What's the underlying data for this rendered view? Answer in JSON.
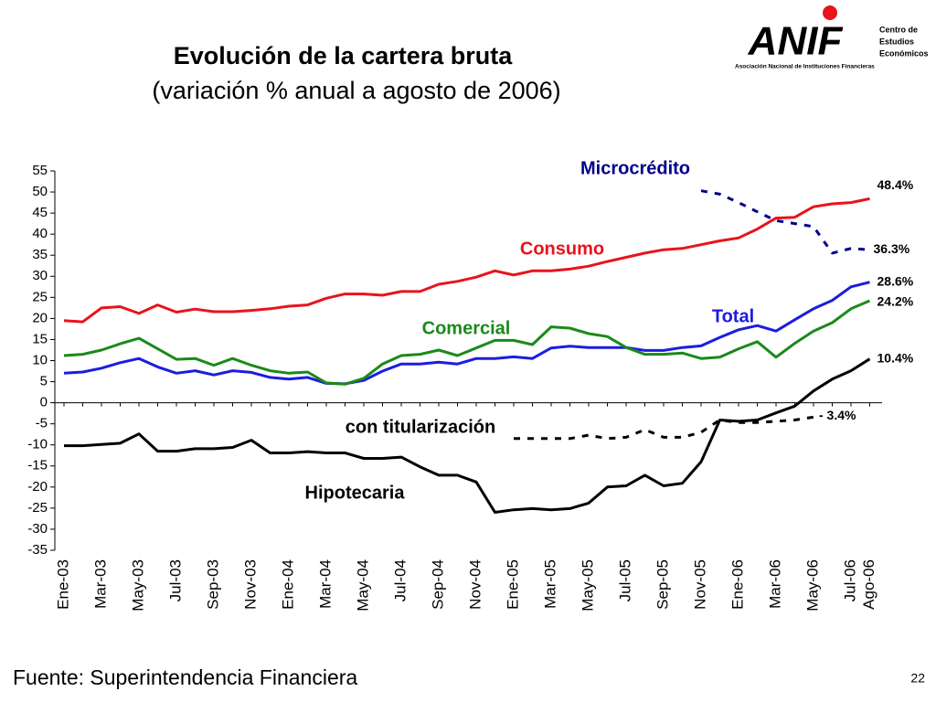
{
  "chart_data": {
    "type": "line",
    "title": "Evolución de la cartera bruta",
    "subtitle": "(variación % anual a agosto de 2006)",
    "source": "Fuente: Superintendencia Financiera",
    "page_number": "22",
    "logo": {
      "name": "ANIF",
      "center": [
        "Centro de",
        "Estudios",
        "Económicos"
      ],
      "association": "Asociación Nacional de Instituciones Financieras"
    },
    "categories": [
      "Ene-03",
      null,
      "Mar-03",
      null,
      "May-03",
      null,
      "Jul-03",
      null,
      "Sep-03",
      null,
      "Nov-03",
      null,
      "Ene-04",
      null,
      "Mar-04",
      null,
      "May-04",
      null,
      "Jul-04",
      null,
      "Sep-04",
      null,
      "Nov-04",
      null,
      "Ene-05",
      null,
      "Mar-05",
      null,
      "May-05",
      null,
      "Jul-05",
      null,
      "Sep-05",
      null,
      "Nov-05",
      null,
      "Ene-06",
      null,
      "Mar-06",
      null,
      "May-06",
      null,
      "Jul-06",
      "Ago-06"
    ],
    "ylim": [
      -35,
      55
    ],
    "yticks": [
      55,
      50,
      45,
      40,
      35,
      30,
      25,
      20,
      15,
      10,
      5,
      0,
      -5,
      -10,
      -15,
      -20,
      -25,
      -30,
      -35
    ],
    "series": [
      {
        "name": "Consumo",
        "color": "#e8141b",
        "dash": false,
        "values": [
          19.5,
          19.2,
          22.5,
          22.8,
          21.2,
          23.2,
          21.5,
          22.2,
          21.6,
          21.6,
          21.9,
          22.3,
          22.9,
          23.2,
          24.8,
          25.8,
          25.8,
          25.5,
          26.4,
          26.4,
          28.1,
          28.8,
          29.8,
          31.3,
          30.3,
          31.3,
          31.3,
          31.7,
          32.4,
          33.5,
          34.5,
          35.5,
          36.3,
          36.6,
          37.5,
          38.4,
          39.1,
          41.2,
          43.8,
          44.0,
          46.5,
          47.2,
          47.5,
          48.4
        ],
        "value_labels": [
          null,
          null,
          null,
          null,
          null,
          null,
          null,
          null,
          null,
          null,
          null,
          null,
          null,
          null,
          null,
          null,
          null,
          null,
          null,
          null,
          null,
          null,
          null,
          null,
          null,
          null,
          null,
          null,
          null,
          null,
          null,
          null,
          null,
          null,
          null,
          null,
          null,
          null,
          null,
          null,
          null,
          null,
          null,
          "48.4%"
        ]
      },
      {
        "name": "Microcrédito",
        "color": "#00008b",
        "dash": true,
        "values": [
          null,
          null,
          null,
          null,
          null,
          null,
          null,
          null,
          null,
          null,
          null,
          null,
          null,
          null,
          null,
          null,
          null,
          null,
          null,
          null,
          null,
          null,
          null,
          null,
          null,
          null,
          null,
          null,
          null,
          null,
          null,
          null,
          null,
          null,
          50.3,
          49.5,
          47.5,
          45.3,
          43.2,
          42.5,
          41.8,
          35.5,
          36.6,
          36.3
        ],
        "value_labels": [
          null,
          null,
          null,
          null,
          null,
          null,
          null,
          null,
          null,
          null,
          null,
          null,
          null,
          null,
          null,
          null,
          null,
          null,
          null,
          null,
          null,
          null,
          null,
          null,
          null,
          null,
          null,
          null,
          null,
          null,
          null,
          null,
          null,
          null,
          null,
          null,
          null,
          null,
          null,
          null,
          null,
          null,
          null,
          "36.3%"
        ]
      },
      {
        "name": "Total",
        "color": "#1c1ce0",
        "dash": false,
        "values": [
          7,
          7.3,
          8.2,
          9.5,
          10.5,
          8.5,
          7,
          7.6,
          6.6,
          7.6,
          7.2,
          6,
          5.6,
          6,
          4.6,
          4.5,
          5.3,
          7.5,
          9.2,
          9.2,
          9.6,
          9.2,
          10.5,
          10.5,
          10.9,
          10.5,
          13,
          13.4,
          13.1,
          13.1,
          13.1,
          12.4,
          12.4,
          13.1,
          13.5,
          15.5,
          17.3,
          18.3,
          17,
          19.7,
          22.3,
          24.3,
          27.5,
          28.6
        ],
        "value_labels": [
          null,
          null,
          null,
          null,
          null,
          null,
          null,
          null,
          null,
          null,
          null,
          null,
          null,
          null,
          null,
          null,
          null,
          null,
          null,
          null,
          null,
          null,
          null,
          null,
          null,
          null,
          null,
          null,
          null,
          null,
          null,
          null,
          null,
          null,
          null,
          null,
          null,
          null,
          null,
          null,
          null,
          null,
          null,
          "28.6%"
        ]
      },
      {
        "name": "Comercial",
        "color": "#1a8a1a",
        "dash": false,
        "values": [
          11.2,
          11.5,
          12.5,
          14,
          15.3,
          12.8,
          10.3,
          10.5,
          8.9,
          10.5,
          8.9,
          7.6,
          7,
          7.3,
          4.7,
          4.4,
          5.8,
          9.2,
          11.2,
          11.5,
          12.5,
          11.2,
          13,
          14.8,
          14.8,
          13.8,
          18,
          17.7,
          16.4,
          15.7,
          13.1,
          11.5,
          11.5,
          11.8,
          10.5,
          10.8,
          12.8,
          14.5,
          10.8,
          14.1,
          17,
          19,
          22.3,
          24.2
        ],
        "value_labels": [
          null,
          null,
          null,
          null,
          null,
          null,
          null,
          null,
          null,
          null,
          null,
          null,
          null,
          null,
          null,
          null,
          null,
          null,
          null,
          null,
          null,
          null,
          null,
          null,
          null,
          null,
          null,
          null,
          null,
          null,
          null,
          null,
          null,
          null,
          null,
          null,
          null,
          null,
          null,
          null,
          null,
          null,
          null,
          "24.2%"
        ]
      },
      {
        "name": "con titularización",
        "color": "#000000",
        "dash": true,
        "values": [
          null,
          null,
          null,
          null,
          null,
          null,
          null,
          null,
          null,
          null,
          null,
          null,
          null,
          null,
          null,
          null,
          null,
          null,
          null,
          null,
          null,
          null,
          null,
          null,
          -8.5,
          -8.5,
          -8.5,
          -8.5,
          -7.7,
          -8.5,
          -8.2,
          -6.4,
          -8.2,
          -8.2,
          -7,
          -4.1,
          -4.7,
          -4.7,
          -4.4,
          -4.1,
          -3.4,
          null,
          null,
          null
        ],
        "value_labels": [
          null,
          null,
          null,
          null,
          null,
          null,
          null,
          null,
          null,
          null,
          null,
          null,
          null,
          null,
          null,
          null,
          null,
          null,
          null,
          null,
          null,
          null,
          null,
          null,
          null,
          null,
          null,
          null,
          null,
          null,
          null,
          null,
          null,
          null,
          null,
          null,
          null,
          null,
          null,
          null,
          "- 3.4%",
          null,
          null,
          null
        ]
      },
      {
        "name": "Hipotecaria",
        "color": "#000000",
        "dash": false,
        "values": [
          -10.2,
          -10.2,
          -9.9,
          -9.6,
          -7.4,
          -11.5,
          -11.5,
          -10.9,
          -10.9,
          -10.6,
          -8.9,
          -11.9,
          -11.9,
          -11.6,
          -11.9,
          -11.9,
          -13.2,
          -13.2,
          -12.9,
          -15.2,
          -17.2,
          -17.2,
          -18.8,
          -26,
          -25.4,
          -25.1,
          -25.4,
          -25.1,
          -23.8,
          -20,
          -19.7,
          -17.2,
          -19.7,
          -19.1,
          -14,
          -4.1,
          -4.4,
          -4.1,
          -2.4,
          -0.8,
          2.8,
          5.6,
          7.6,
          10.4
        ],
        "value_labels": [
          null,
          null,
          null,
          null,
          null,
          null,
          null,
          null,
          null,
          null,
          null,
          null,
          null,
          null,
          null,
          null,
          null,
          null,
          null,
          null,
          null,
          null,
          null,
          null,
          null,
          null,
          null,
          null,
          null,
          null,
          null,
          null,
          null,
          null,
          null,
          null,
          null,
          null,
          null,
          null,
          null,
          null,
          null,
          "10.4%"
        ]
      }
    ]
  }
}
